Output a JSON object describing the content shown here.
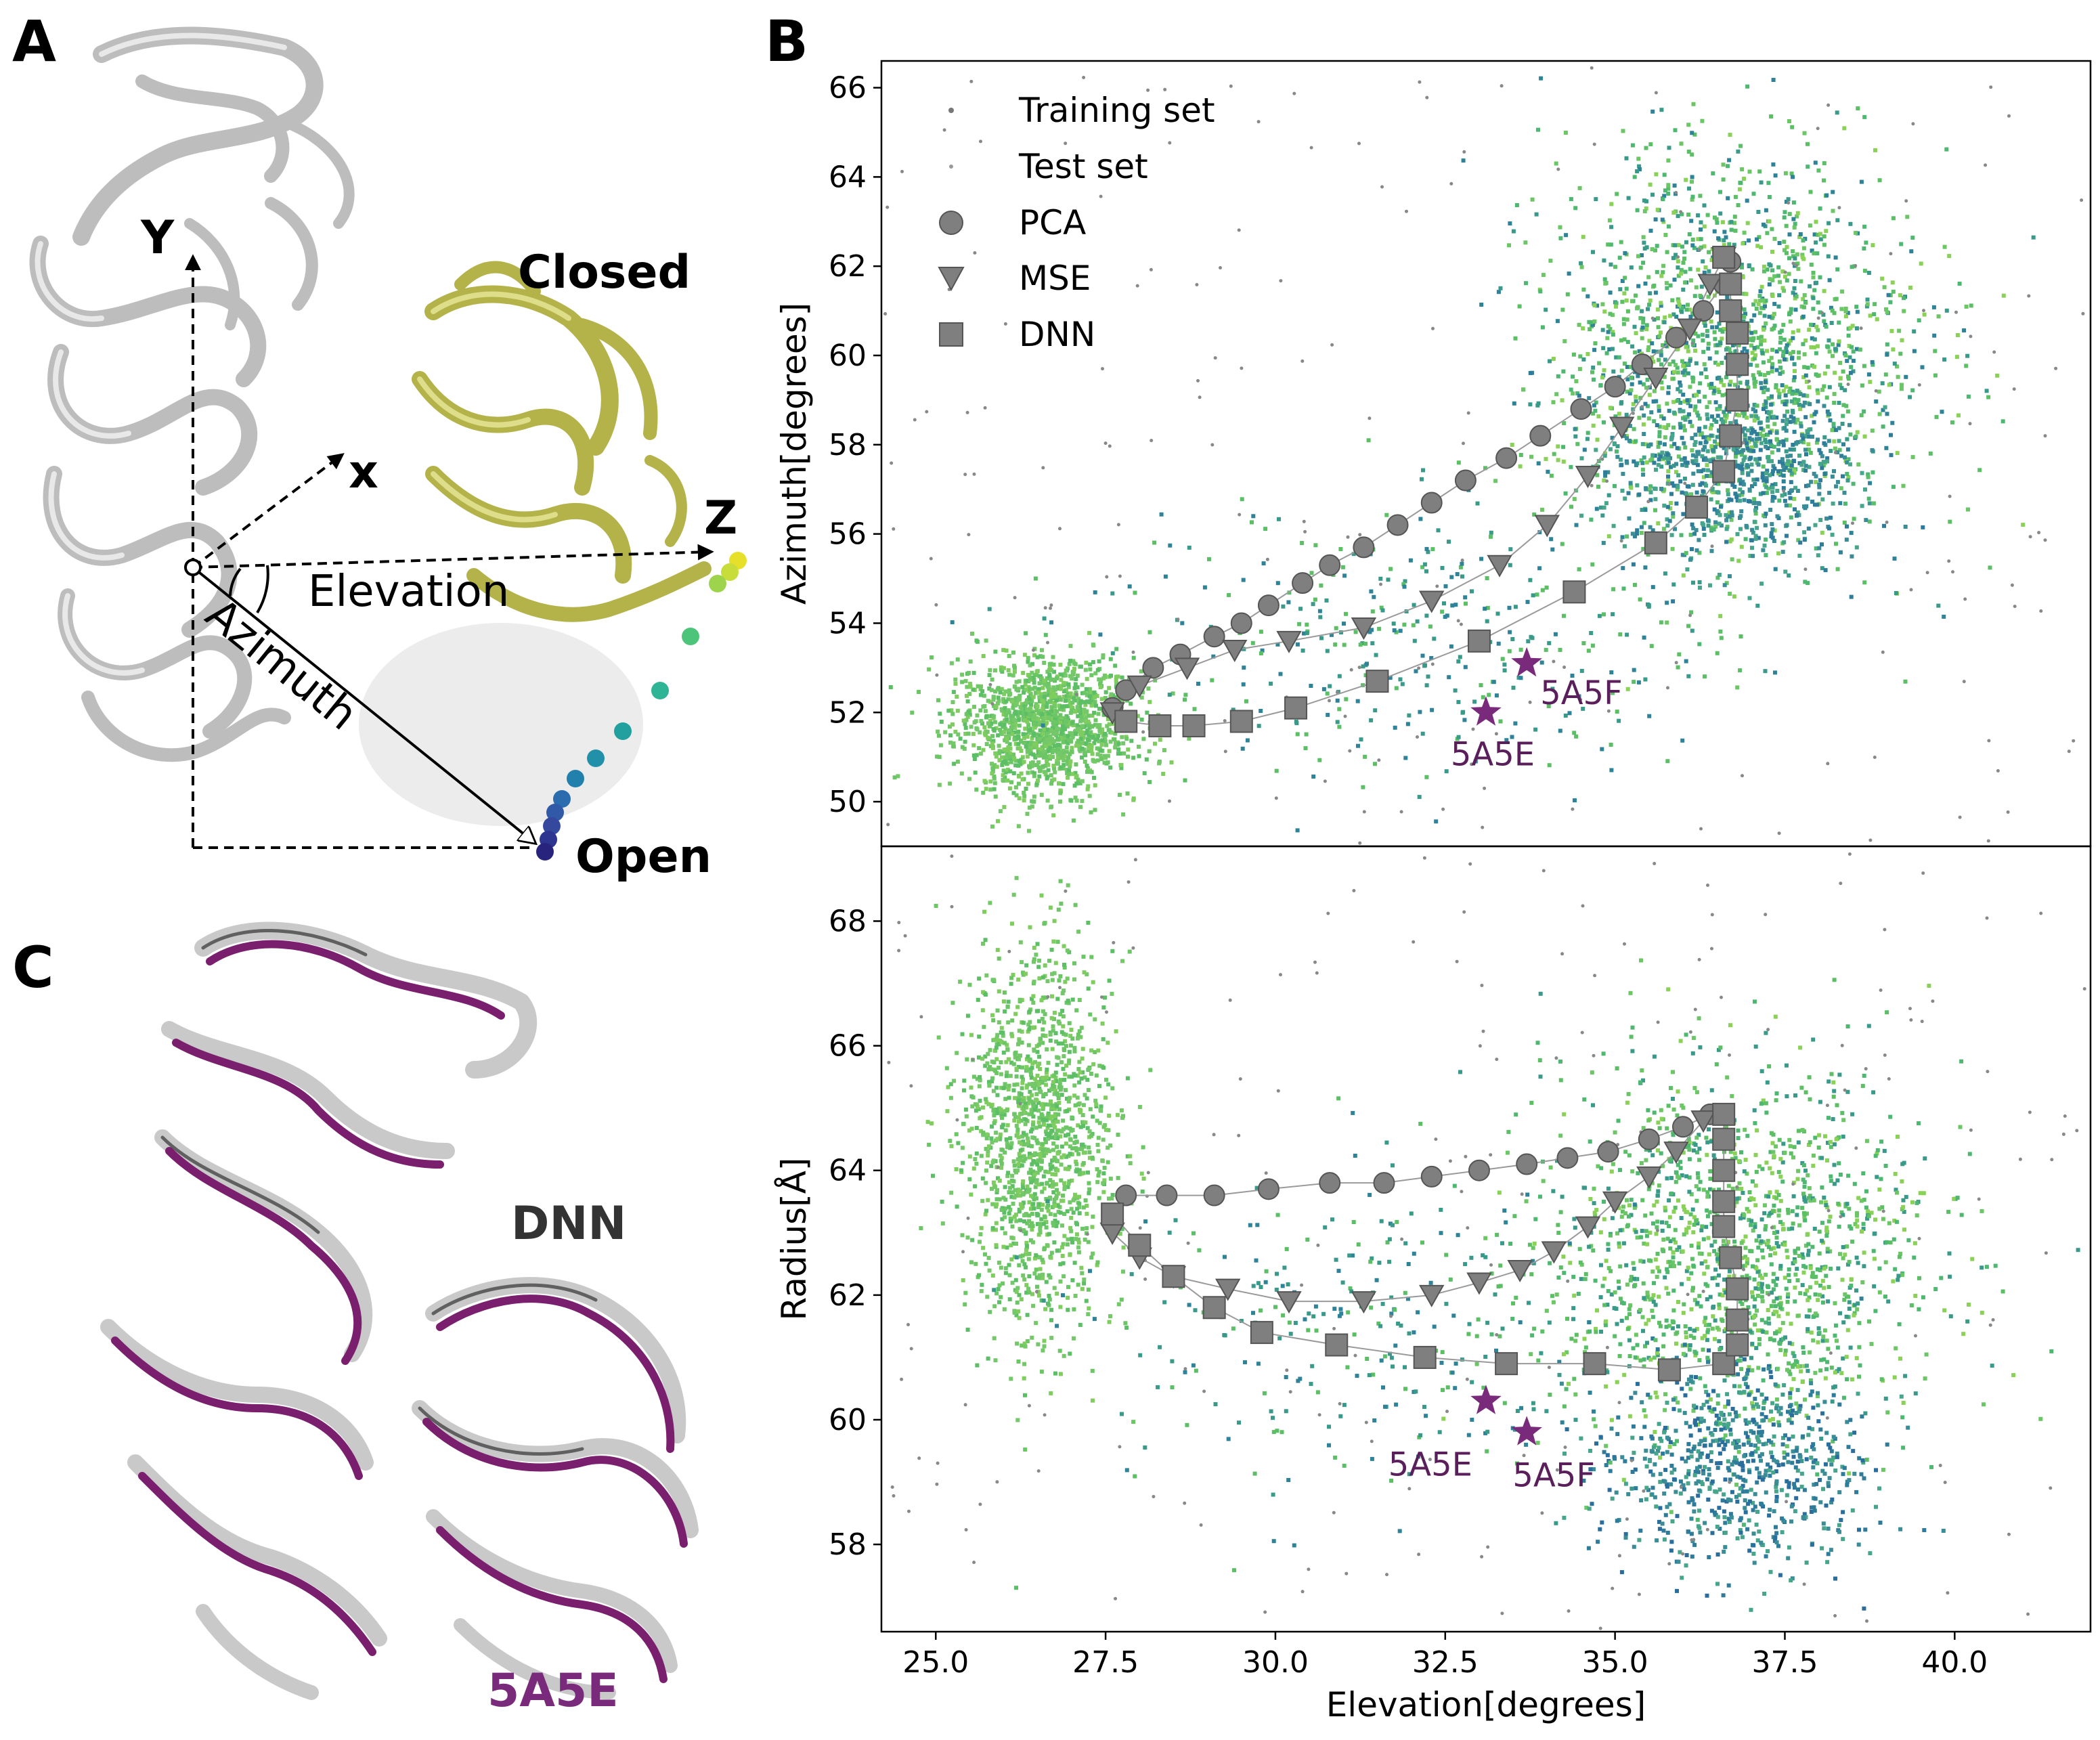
{
  "colors": {
    "purple": "#7a2a7a",
    "marker_gray": "#7f7f7f",
    "olive": "#b8b850",
    "protein_gray": "#c8c8c8"
  },
  "panel_a": {
    "letter": "A",
    "closed_label": "Closed",
    "open_label": "Open",
    "axis_y": "Y",
    "axis_x": "x",
    "axis_z": "Z",
    "elevation_label": "Elevation",
    "azimuth_label": "Azimuth"
  },
  "panel_b": {
    "letter": "B"
  },
  "panel_c": {
    "letter": "C",
    "dnn_label": "DNN",
    "pdb_label": "5A5E"
  },
  "chart_data": [
    {
      "type": "scatter",
      "xlabel": "",
      "ylabel": "Azimuth[degrees]",
      "xlim": [
        24.2,
        42.0
      ],
      "ylim": [
        49.0,
        66.6
      ],
      "yticks": [
        "50",
        "52",
        "54",
        "56",
        "58",
        "60",
        "62",
        "64",
        "66"
      ],
      "ytick_values": [
        50,
        52,
        54,
        56,
        58,
        60,
        62,
        64,
        66
      ],
      "legend_position": "top-left",
      "legend": [
        {
          "label": "Training set",
          "marker": "dot"
        },
        {
          "label": "Test set",
          "marker": "dot-small"
        },
        {
          "label": "PCA",
          "marker": "circle"
        },
        {
          "label": "MSE",
          "marker": "triangle"
        },
        {
          "label": "DNN",
          "marker": "square"
        }
      ],
      "series": [
        {
          "name": "PCA",
          "marker": "circle",
          "points": [
            [
              27.6,
              52.1
            ],
            [
              27.8,
              52.5
            ],
            [
              28.2,
              53.0
            ],
            [
              28.6,
              53.3
            ],
            [
              29.1,
              53.7
            ],
            [
              29.5,
              54.0
            ],
            [
              29.9,
              54.4
            ],
            [
              30.4,
              54.9
            ],
            [
              30.8,
              55.3
            ],
            [
              31.3,
              55.7
            ],
            [
              31.8,
              56.2
            ],
            [
              32.3,
              56.7
            ],
            [
              32.8,
              57.2
            ],
            [
              33.4,
              57.7
            ],
            [
              33.9,
              58.2
            ],
            [
              34.5,
              58.8
            ],
            [
              35.0,
              59.3
            ],
            [
              35.4,
              59.8
            ],
            [
              35.9,
              60.4
            ],
            [
              36.3,
              61.0
            ],
            [
              36.6,
              61.6
            ],
            [
              36.7,
              62.1
            ]
          ]
        },
        {
          "name": "MSE",
          "marker": "triangle",
          "points": [
            [
              27.6,
              52.0
            ],
            [
              28.0,
              52.6
            ],
            [
              28.7,
              53.0
            ],
            [
              29.4,
              53.4
            ],
            [
              30.2,
              53.6
            ],
            [
              31.3,
              53.9
            ],
            [
              32.3,
              54.5
            ],
            [
              33.3,
              55.3
            ],
            [
              34.0,
              56.2
            ],
            [
              34.6,
              57.3
            ],
            [
              35.1,
              58.4
            ],
            [
              35.6,
              59.5
            ],
            [
              36.1,
              60.6
            ],
            [
              36.4,
              61.6
            ],
            [
              36.6,
              62.2
            ]
          ]
        },
        {
          "name": "DNN",
          "marker": "square",
          "points": [
            [
              27.8,
              51.8
            ],
            [
              28.3,
              51.7
            ],
            [
              28.8,
              51.7
            ],
            [
              29.5,
              51.8
            ],
            [
              30.3,
              52.1
            ],
            [
              31.5,
              52.7
            ],
            [
              33.0,
              53.6
            ],
            [
              34.4,
              54.7
            ],
            [
              35.6,
              55.8
            ],
            [
              36.2,
              56.6
            ],
            [
              36.6,
              57.4
            ],
            [
              36.7,
              58.2
            ],
            [
              36.8,
              59.0
            ],
            [
              36.8,
              59.8
            ],
            [
              36.8,
              60.5
            ],
            [
              36.7,
              61.0
            ],
            [
              36.7,
              61.6
            ],
            [
              36.6,
              62.2
            ]
          ]
        }
      ],
      "annotations": [
        {
          "label": "5A5F",
          "x": 33.7,
          "y": 53.1,
          "marker": "star"
        },
        {
          "label": "5A5E",
          "x": 33.1,
          "y": 52.0,
          "marker": "star"
        }
      ]
    },
    {
      "type": "scatter",
      "xlabel": "Elevation[degrees]",
      "ylabel": "Radius[Å]",
      "xlim": [
        24.2,
        42.0
      ],
      "ylim": [
        56.6,
        69.2
      ],
      "xticks": [
        "25.0",
        "27.5",
        "30.0",
        "32.5",
        "35.0",
        "37.5",
        "40.0"
      ],
      "xtick_values": [
        25.0,
        27.5,
        30.0,
        32.5,
        35.0,
        37.5,
        40.0
      ],
      "yticks": [
        "58",
        "60",
        "62",
        "64",
        "66",
        "68"
      ],
      "ytick_values": [
        58,
        60,
        62,
        64,
        66,
        68
      ],
      "series": [
        {
          "name": "PCA",
          "marker": "circle",
          "points": [
            [
              27.8,
              63.6
            ],
            [
              28.4,
              63.6
            ],
            [
              29.1,
              63.6
            ],
            [
              29.9,
              63.7
            ],
            [
              30.8,
              63.8
            ],
            [
              31.6,
              63.8
            ],
            [
              32.3,
              63.9
            ],
            [
              33.0,
              64.0
            ],
            [
              33.7,
              64.1
            ],
            [
              34.3,
              64.2
            ],
            [
              34.9,
              64.3
            ],
            [
              35.5,
              64.5
            ],
            [
              36.0,
              64.7
            ],
            [
              36.4,
              64.9
            ]
          ]
        },
        {
          "name": "MSE",
          "marker": "triangle",
          "points": [
            [
              27.6,
              63.0
            ],
            [
              28.0,
              62.6
            ],
            [
              28.5,
              62.3
            ],
            [
              29.3,
              62.1
            ],
            [
              30.2,
              61.9
            ],
            [
              31.3,
              61.9
            ],
            [
              32.3,
              62.0
            ],
            [
              33.0,
              62.2
            ],
            [
              33.6,
              62.4
            ],
            [
              34.1,
              62.7
            ],
            [
              34.6,
              63.1
            ],
            [
              35.0,
              63.5
            ],
            [
              35.5,
              63.9
            ],
            [
              35.9,
              64.3
            ],
            [
              36.3,
              64.8
            ]
          ]
        },
        {
          "name": "DNN",
          "marker": "square",
          "points": [
            [
              27.6,
              63.3
            ],
            [
              28.0,
              62.8
            ],
            [
              28.5,
              62.3
            ],
            [
              29.1,
              61.8
            ],
            [
              29.8,
              61.4
            ],
            [
              30.9,
              61.2
            ],
            [
              32.2,
              61.0
            ],
            [
              33.4,
              60.9
            ],
            [
              34.7,
              60.9
            ],
            [
              35.8,
              60.8
            ],
            [
              36.6,
              60.9
            ],
            [
              36.8,
              61.2
            ],
            [
              36.8,
              61.6
            ],
            [
              36.8,
              62.1
            ],
            [
              36.7,
              62.6
            ],
            [
              36.6,
              63.1
            ],
            [
              36.6,
              63.5
            ],
            [
              36.6,
              64.0
            ],
            [
              36.6,
              64.5
            ],
            [
              36.6,
              64.9
            ]
          ]
        }
      ],
      "annotations": [
        {
          "label": "5A5E",
          "x": 33.1,
          "y": 60.3,
          "marker": "star"
        },
        {
          "label": "5A5F",
          "x": 33.7,
          "y": 59.8,
          "marker": "star"
        }
      ]
    }
  ]
}
